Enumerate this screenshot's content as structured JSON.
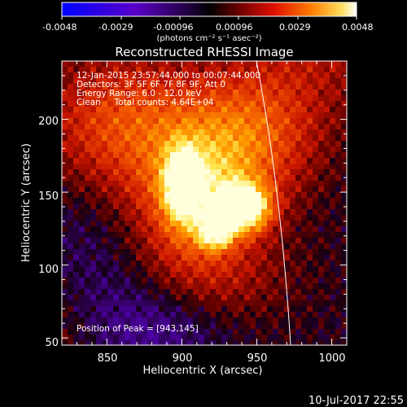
{
  "colorbar": {
    "tick_labels": [
      "-0.0048",
      "-0.0029",
      "-0.00096",
      "0.00096",
      "0.0029",
      "0.0048"
    ],
    "units_label": "(photons cm⁻² s⁻¹ asec⁻²)",
    "min": -0.0048,
    "max": 0.0048,
    "colormap": "purple-black-red-yellow-white"
  },
  "plot": {
    "title": "Reconstructed RHESSI Image",
    "xlabel": "Heliocentric X (arcsec)",
    "ylabel": "Heliocentric Y (arcsec)",
    "x_ticks": [
      "850",
      "900",
      "950",
      "1000"
    ],
    "y_ticks": [
      "50",
      "100",
      "150",
      "200"
    ],
    "xlim": [
      820,
      1010
    ],
    "ylim": [
      45,
      240
    ],
    "info_lines": [
      "12-Jan-2015 23:57:44.000 to 00:07:44.000",
      "Detectors: 3F 5F 6F 7F 8F 9F, Att 0",
      "Energy Range: 6.0 - 12.0 keV",
      "Clean     Total counts: 4.64E+04"
    ],
    "peak_label": "Position of Peak = [943,145]",
    "peak": [
      943,
      145
    ]
  },
  "footer": {
    "timestamp": "10-Jul-2017 22:55"
  }
}
